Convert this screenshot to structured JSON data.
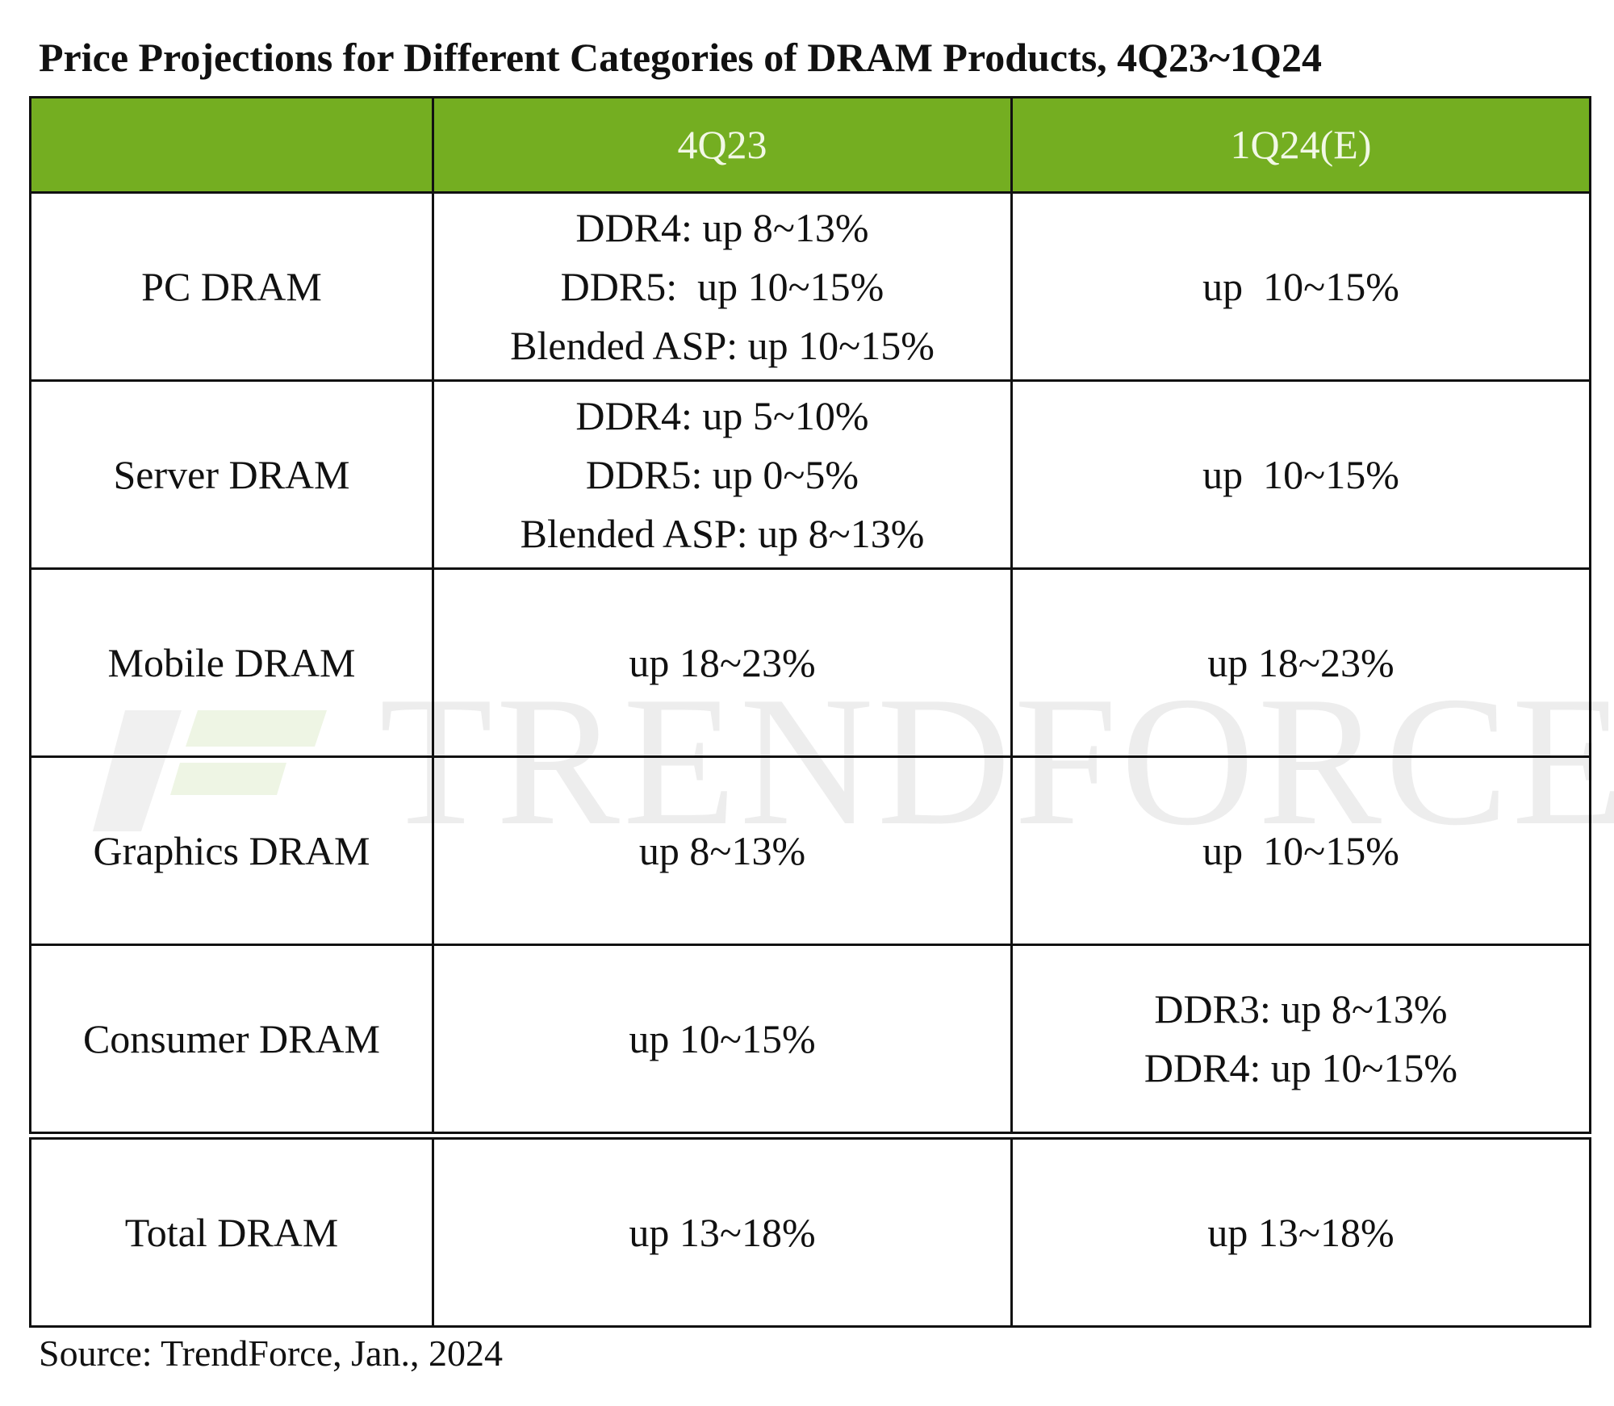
{
  "title": "Price Projections for Different Categories of DRAM Products, 4Q23~1Q24",
  "table": {
    "columns": [
      "4Q23",
      "1Q24(E)"
    ],
    "rows": [
      {
        "label": "PC DRAM",
        "cells": [
          [
            "DDR4: up 8~13%",
            "DDR5:  up 10~15%",
            "Blended ASP: up 10~15%"
          ],
          [
            "up  10~15%"
          ]
        ]
      },
      {
        "label": "Server DRAM",
        "cells": [
          [
            "DDR4: up 5~10%",
            "DDR5: up 0~5%",
            "Blended ASP: up 8~13%"
          ],
          [
            "up  10~15%"
          ]
        ]
      },
      {
        "label": "Mobile DRAM",
        "cells": [
          [
            "up 18~23%"
          ],
          [
            "up 18~23%"
          ]
        ]
      },
      {
        "label": "Graphics DRAM",
        "cells": [
          [
            "up 8~13%"
          ],
          [
            "up  10~15%"
          ]
        ]
      },
      {
        "label": "Consumer DRAM",
        "cells": [
          [
            "up 10~15%"
          ],
          [
            "DDR3: up 8~13%",
            "DDR4: up 10~15%"
          ]
        ]
      },
      {
        "label": "Total DRAM",
        "cells": [
          [
            "up 13~18%"
          ],
          [
            "up 13~18%"
          ]
        ]
      }
    ]
  },
  "watermark": "TRENDFORCE",
  "source": "Source: TrendForce, Jan., 2024"
}
